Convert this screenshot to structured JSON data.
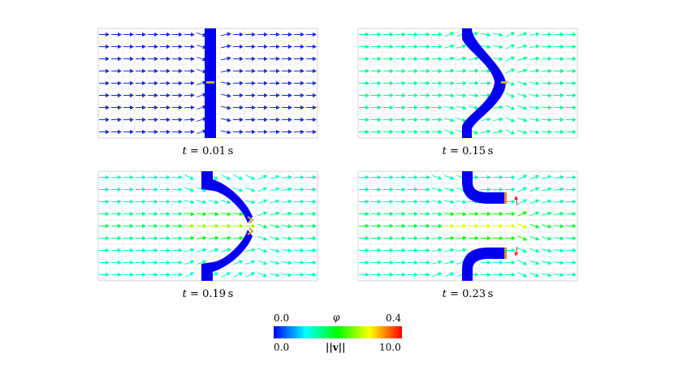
{
  "panels": [
    {
      "time_label": "0.01",
      "unit": "s",
      "shape": "straight"
    },
    {
      "time_label": "0.15",
      "unit": "s",
      "shape": "bulge"
    },
    {
      "time_label": "0.19",
      "unit": "s",
      "shape": "pinch"
    },
    {
      "time_label": "0.23",
      "unit": "s",
      "shape": "split"
    }
  ],
  "caption_var": "t",
  "caption_eq": "=",
  "colorbar": {
    "phi_min": "0.0",
    "phi_max": "0.4",
    "phi_symbol": "φ",
    "v_min": "0.0",
    "v_max": "10.0",
    "v_symbol": "||v||",
    "stops": [
      "#0000ff",
      "#00ffff",
      "#00ff00",
      "#ffff00",
      "#ff0000"
    ]
  },
  "colors": {
    "solid": "#0000ee",
    "slow_arrow": "#1a2fd0",
    "fast_arrow": "#22c4e6"
  }
}
